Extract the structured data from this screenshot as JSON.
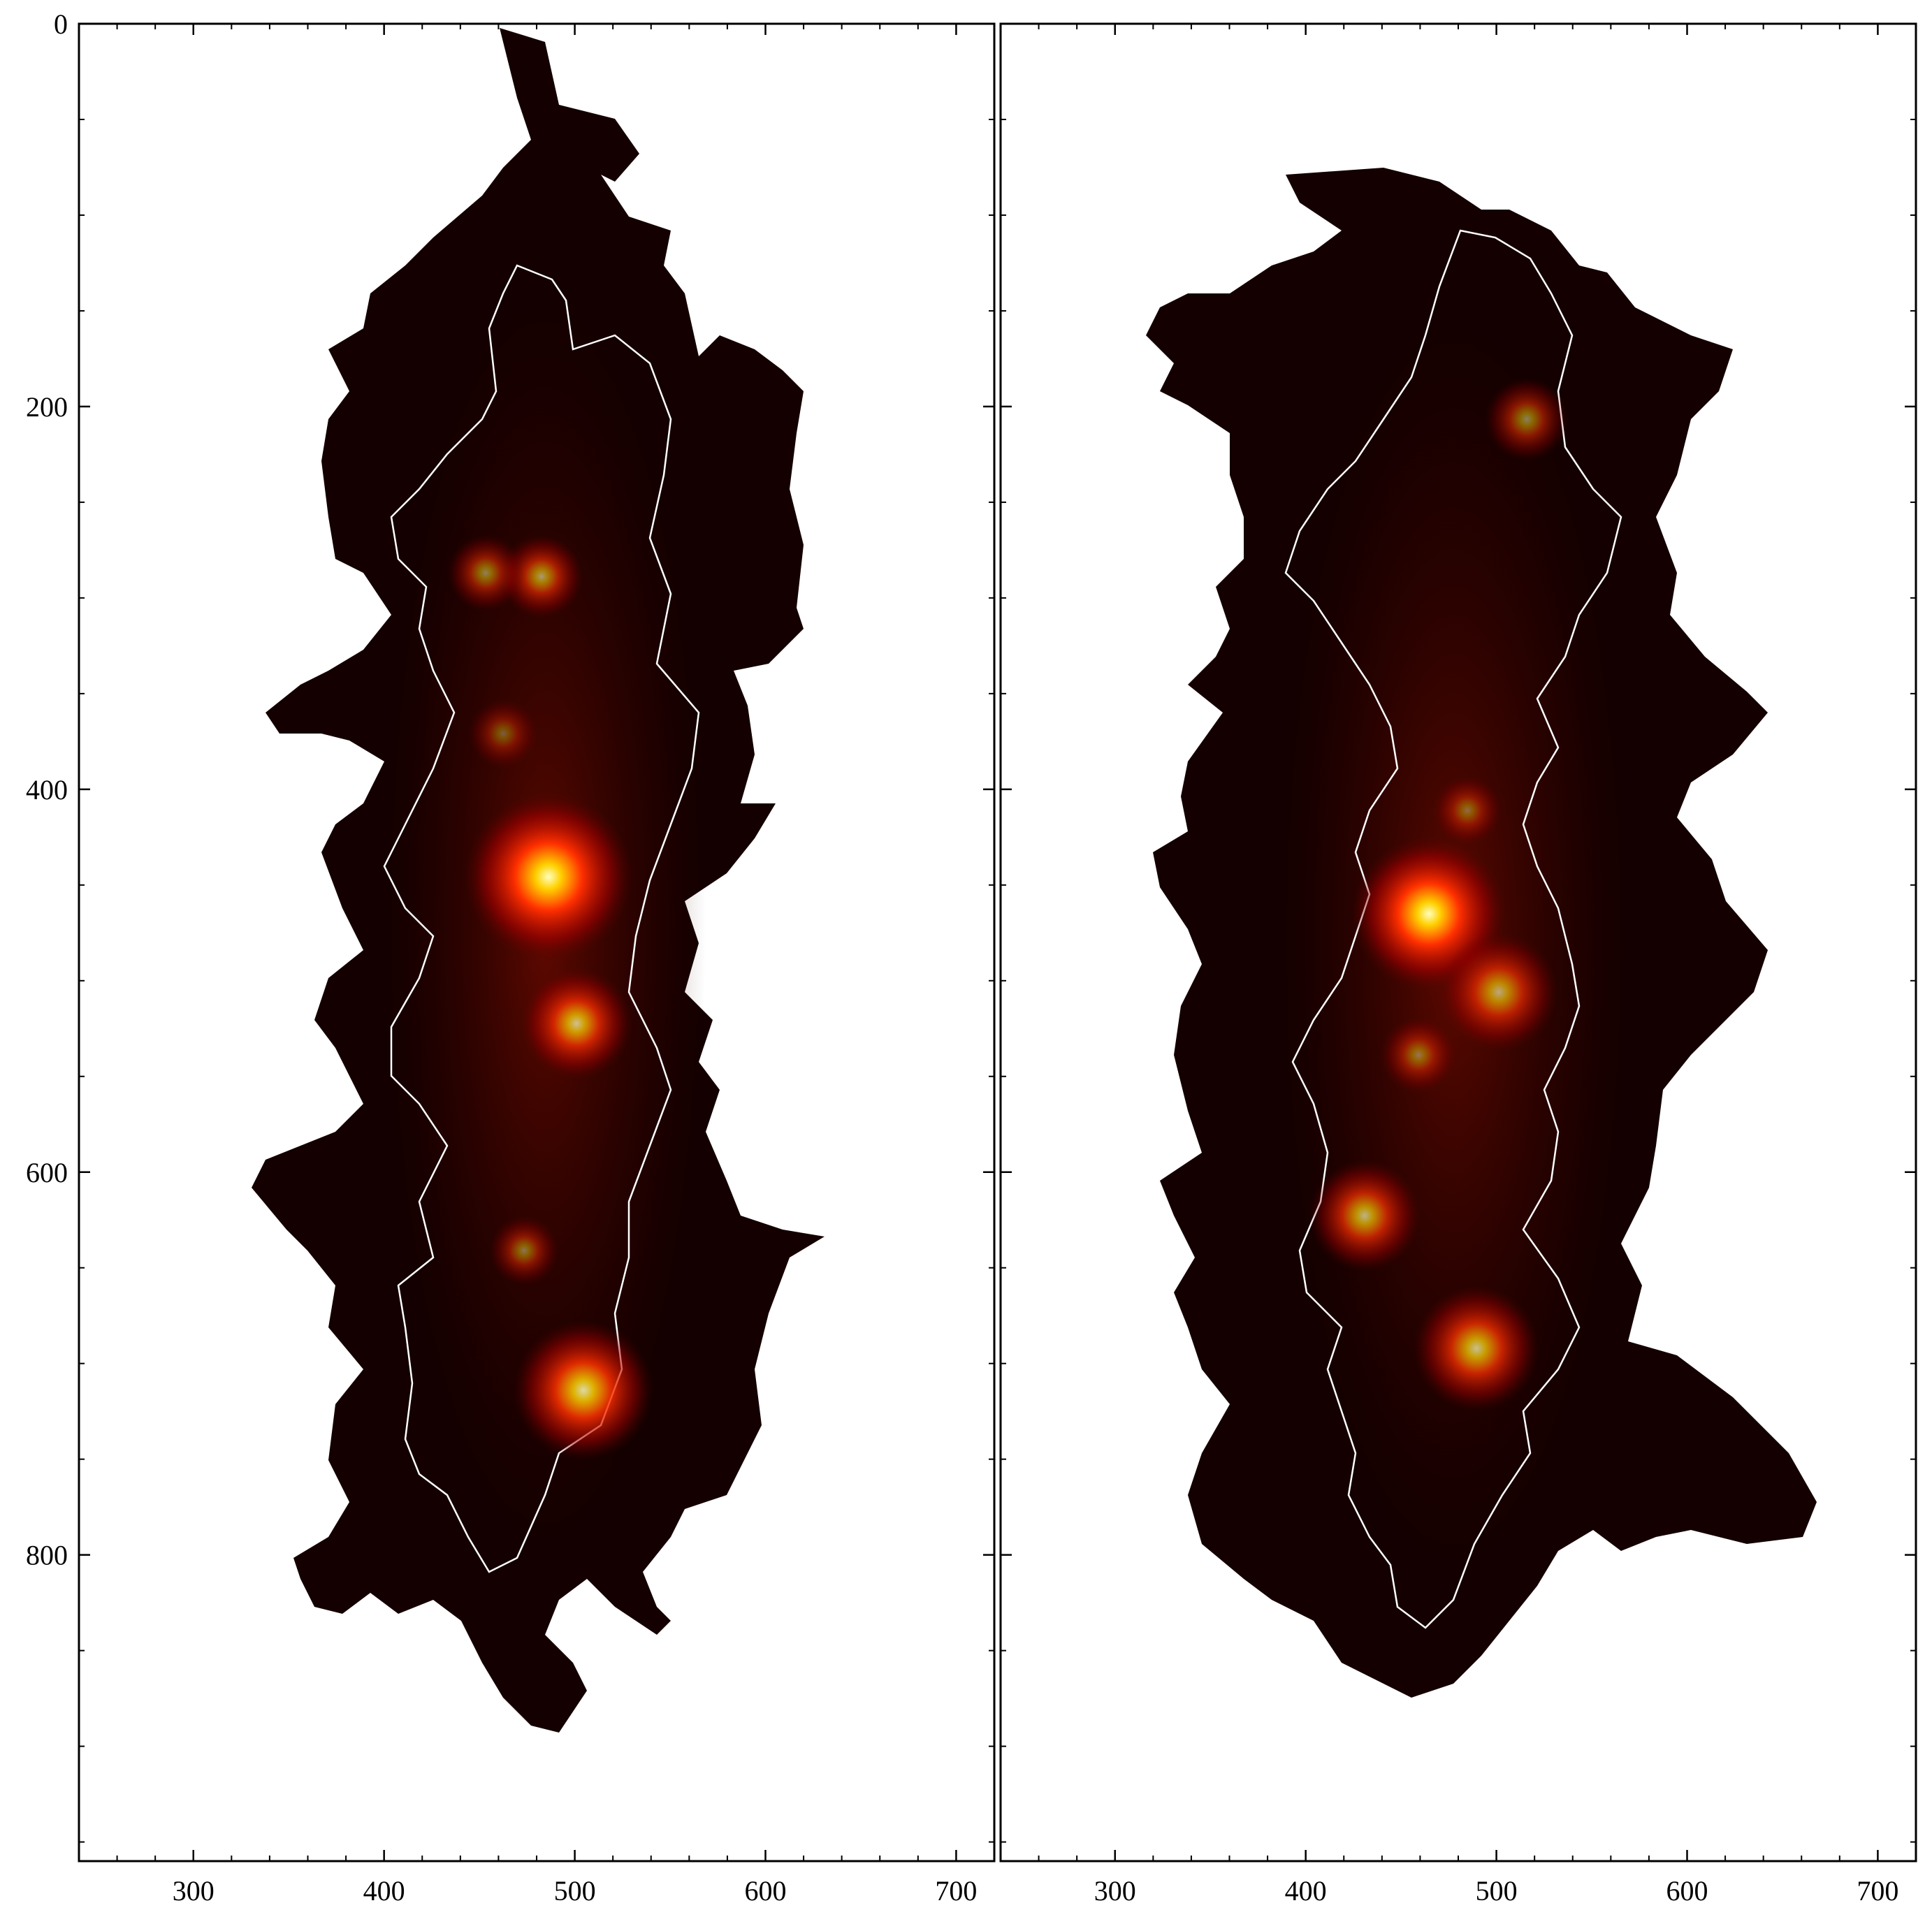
{
  "figure": {
    "panels": [
      {
        "id": "left",
        "xlim": [
          240,
          720
        ],
        "ylim": [
          960,
          0
        ],
        "x_ticks": [
          "300",
          "400",
          "500",
          "600",
          "700"
        ],
        "y_ticks": [
          "0",
          "200",
          "400",
          "600",
          "800"
        ],
        "colormap": "hot",
        "contour_color": "#ffffff",
        "hotspots": [
          {
            "x": 483,
            "y": 446,
            "strength": 1.0
          },
          {
            "x": 510,
            "y": 720,
            "strength": 0.7
          },
          {
            "x": 505,
            "y": 525,
            "strength": 0.55
          },
          {
            "x": 480,
            "y": 290,
            "strength": 0.45
          },
          {
            "x": 450,
            "y": 288,
            "strength": 0.35
          }
        ]
      },
      {
        "id": "right",
        "xlim": [
          240,
          720
        ],
        "ylim": [
          960,
          0
        ],
        "x_ticks": [
          "300",
          "400",
          "500",
          "600",
          "700"
        ],
        "y_ticks": [],
        "colormap": "hot",
        "contour_color": "#ffffff",
        "hotspots": [
          {
            "x": 464,
            "y": 467,
            "strength": 1.0
          },
          {
            "x": 478,
            "y": 692,
            "strength": 0.6
          },
          {
            "x": 448,
            "y": 624,
            "strength": 0.55
          },
          {
            "x": 505,
            "y": 505,
            "strength": 0.5
          },
          {
            "x": 515,
            "y": 210,
            "strength": 0.4
          }
        ]
      }
    ]
  }
}
